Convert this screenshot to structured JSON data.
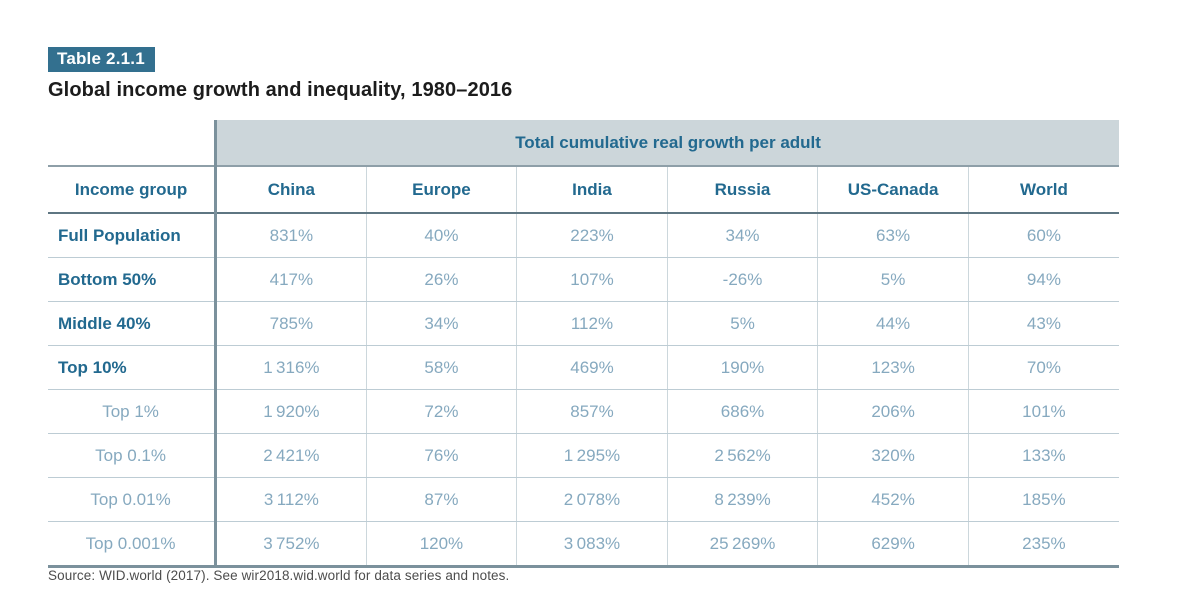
{
  "badge": "Table 2.1.1",
  "title": "Global income growth and inequality, 1980–2016",
  "source": "Source: WID.world (2017). See wir2018.wid.world for data series and notes.",
  "colors": {
    "accent_dark": "#33708f",
    "header_text": "#22698f",
    "value_text": "#86a9bf",
    "band_bg": "#ccd6da",
    "divider_dark": "#7b919c",
    "row_line": "#bdccd4",
    "col_line": "#ccd7dc"
  },
  "chart_data": {
    "type": "table",
    "title": "Global income growth and inequality, 1980–2016",
    "span_header": "Total cumulative real growth per adult",
    "columns": [
      "Income group",
      "China",
      "Europe",
      "India",
      "Russia",
      "US-Canada",
      "World"
    ],
    "rows": [
      {
        "label": "Full Population",
        "emphasis": true,
        "values": [
          "831%",
          "40%",
          "223%",
          "34%",
          "63%",
          "60%"
        ]
      },
      {
        "label": "Bottom 50%",
        "emphasis": true,
        "values": [
          "417%",
          "26%",
          "107%",
          "-26%",
          "5%",
          "94%"
        ]
      },
      {
        "label": "Middle 40%",
        "emphasis": true,
        "values": [
          "785%",
          "34%",
          "112%",
          "5%",
          "44%",
          "43%"
        ]
      },
      {
        "label": "Top 10%",
        "emphasis": true,
        "values": [
          "1 316%",
          "58%",
          "469%",
          "190%",
          "123%",
          "70%"
        ]
      },
      {
        "label": "Top 1%",
        "emphasis": false,
        "values": [
          "1 920%",
          "72%",
          "857%",
          "686%",
          "206%",
          "101%"
        ]
      },
      {
        "label": "Top 0.1%",
        "emphasis": false,
        "values": [
          "2 421%",
          "76%",
          "1 295%",
          "2 562%",
          "320%",
          "133%"
        ]
      },
      {
        "label": "Top 0.01%",
        "emphasis": false,
        "values": [
          "3 112%",
          "87%",
          "2 078%",
          "8 239%",
          "452%",
          "185%"
        ]
      },
      {
        "label": "Top 0.001%",
        "emphasis": false,
        "values": [
          "3 752%",
          "120%",
          "3 083%",
          "25 269%",
          "629%",
          "235%"
        ]
      }
    ]
  }
}
